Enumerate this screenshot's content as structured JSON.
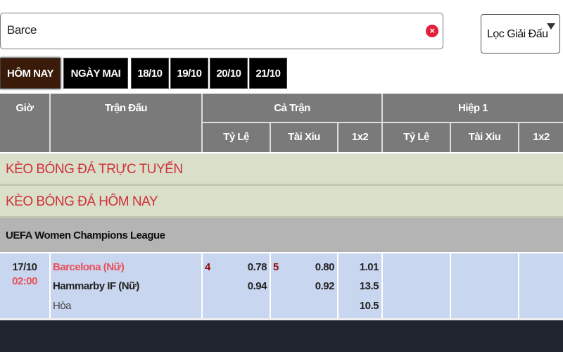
{
  "search": {
    "value": "Barce",
    "clear_icon": "clear-x-circle-icon"
  },
  "filter": {
    "label": "Lọc Giải Đấu",
    "icon": "caret-down-icon"
  },
  "tabs": [
    {
      "label": "HÔM NAY",
      "active": true
    },
    {
      "label": "NGÀY MAI"
    },
    {
      "label": "18/10"
    },
    {
      "label": "19/10"
    },
    {
      "label": "20/10"
    },
    {
      "label": "21/10"
    }
  ],
  "header": {
    "time": "Giờ",
    "match": "Trận Đấu",
    "full": "Cả Trận",
    "half": "Hiệp 1",
    "handicap": "Tỷ Lệ",
    "overunder": "Tài Xiu",
    "x12": "1x2"
  },
  "sections": [
    "KÈO BÓNG ĐÁ TRỰC TUYẾN",
    "KÈO BÓNG ĐÁ HÔM NAY"
  ],
  "league": "UEFA Women Champions League",
  "match": {
    "date": "17/10",
    "time": "02:00",
    "home": "Barcelona (Nữ)",
    "away": "Hammarby IF (Nữ)",
    "draw": "Hòa",
    "handicap_line": "4",
    "handicap_home": "0.78",
    "handicap_away": "0.94",
    "ou_line": "5",
    "ou_over": "0.80",
    "ou_under": "0.92",
    "x12_home": "1.01",
    "x12_away": "13.5",
    "x12_draw": "10.5"
  },
  "colors": {
    "accent_red": "#d0303a",
    "active_tab": "#3a1a08",
    "match_bg": "#c9d6ef"
  }
}
